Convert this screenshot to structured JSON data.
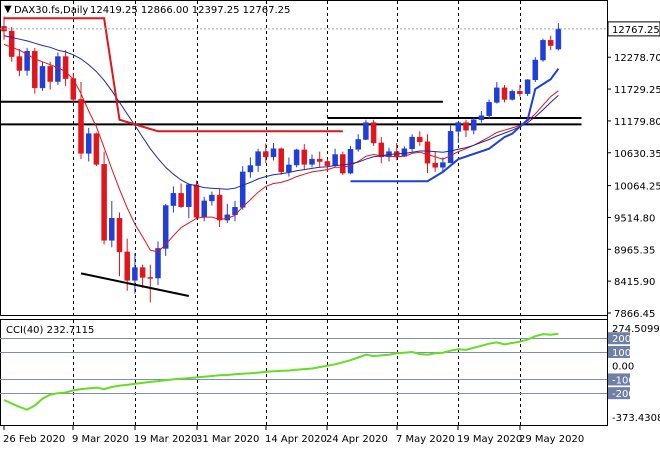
{
  "symbol_header": "DAX30.fs,Daily",
  "ohlc_header": "12419.25 12866.00 12397.25 12767.25",
  "cci_header": "CCI(40) 232.7115",
  "current_price_label": "12767.25",
  "colors": {
    "up": "#1f3fd8",
    "down": "#e0161c",
    "ma_fast": "#e0161c",
    "ma_slow": "#1a2aa8",
    "cci_line": "#66dd22",
    "axis": "#000000",
    "grid": "#000000",
    "price_label_bg": "#ffffff",
    "level_bg": "#6f7fa6"
  },
  "chart_data": [
    {
      "type": "candlestick",
      "title": "DAX30.fs,Daily",
      "y_ticks": [
        "12767.25",
        "12278.70",
        "11729.25",
        "11179.80",
        "10630.35",
        "10064.25",
        "9514.80",
        "8965.35",
        "8415.90",
        "7866.45"
      ],
      "ylim": [
        7866.45,
        13100
      ],
      "x_labels": [
        "26 Feb 2020",
        "9 Mar 2020",
        "19 Mar 2020",
        "31 Mar 2020",
        "14 Apr 2020",
        "24 Apr 2020",
        "7 May 2020",
        "19 May 2020",
        "29 May 2020"
      ],
      "x_label_index": [
        0,
        9,
        17,
        25,
        34,
        42,
        51,
        59,
        67
      ],
      "vertical_grid_index": [
        9,
        17,
        25,
        34,
        42,
        51,
        59,
        67
      ],
      "candles": [
        [
          12810,
          12980,
          12580,
          12730
        ],
        [
          12730,
          12800,
          12200,
          12290
        ],
        [
          12290,
          12420,
          11950,
          12050
        ],
        [
          12050,
          12440,
          11960,
          12380
        ],
        [
          12380,
          12440,
          11650,
          11750
        ],
        [
          11750,
          12200,
          11700,
          12120
        ],
        [
          12120,
          12200,
          11720,
          11860
        ],
        [
          11860,
          12360,
          11800,
          12290
        ],
        [
          12290,
          12400,
          11780,
          11910
        ],
        [
          11910,
          12010,
          11500,
          11550
        ],
        [
          11550,
          11850,
          10520,
          10620
        ],
        [
          10620,
          11060,
          10480,
          10960
        ],
        [
          10960,
          10980,
          10400,
          10430
        ],
        [
          10430,
          10650,
          9050,
          9120
        ],
        [
          9120,
          9800,
          9000,
          9500
        ],
        [
          9500,
          9600,
          8500,
          8920
        ],
        [
          8920,
          9150,
          8250,
          8430
        ],
        [
          8430,
          8900,
          8200,
          8650
        ],
        [
          8650,
          8700,
          8300,
          8480
        ],
        [
          8480,
          8700,
          8050,
          8470
        ],
        [
          8470,
          9100,
          8350,
          8980
        ],
        [
          8980,
          9750,
          8850,
          9720
        ],
        [
          9720,
          10050,
          9600,
          9930
        ],
        [
          9930,
          10100,
          9680,
          9700
        ],
        [
          9700,
          10100,
          9500,
          10080
        ],
        [
          10080,
          10150,
          9480,
          9520
        ],
        [
          9520,
          9870,
          9450,
          9800
        ],
        [
          9800,
          9960,
          9720,
          9900
        ],
        [
          9900,
          10000,
          9350,
          9470
        ],
        [
          9470,
          9750,
          9420,
          9560
        ],
        [
          9560,
          9800,
          9450,
          9690
        ],
        [
          9690,
          10400,
          9650,
          10300
        ],
        [
          10300,
          10550,
          10200,
          10410
        ],
        [
          10410,
          10700,
          10300,
          10650
        ],
        [
          10650,
          10790,
          10450,
          10560
        ],
        [
          10560,
          10800,
          10500,
          10700
        ],
        [
          10700,
          10720,
          10250,
          10300
        ],
        [
          10300,
          10550,
          10220,
          10420
        ],
        [
          10420,
          10700,
          10380,
          10680
        ],
        [
          10680,
          10780,
          10350,
          10430
        ],
        [
          10430,
          10600,
          10380,
          10520
        ],
        [
          10520,
          10650,
          10380,
          10480
        ],
        [
          10480,
          10520,
          10300,
          10410
        ],
        [
          10410,
          10700,
          10380,
          10600
        ],
        [
          10600,
          10650,
          10250,
          10280
        ],
        [
          10280,
          10750,
          10260,
          10690
        ],
        [
          10690,
          10950,
          10650,
          10860
        ],
        [
          10860,
          11200,
          10850,
          11150
        ],
        [
          11150,
          11200,
          10750,
          10800
        ],
        [
          10800,
          10900,
          10450,
          10560
        ],
        [
          10560,
          10720,
          10480,
          10650
        ],
        [
          10650,
          10800,
          10500,
          10570
        ],
        [
          10570,
          10740,
          10560,
          10700
        ],
        [
          10700,
          10950,
          10650,
          10900
        ],
        [
          10900,
          11000,
          10750,
          10820
        ],
        [
          10820,
          10950,
          10280,
          10450
        ],
        [
          10450,
          10650,
          10300,
          10380
        ],
        [
          10380,
          10550,
          10300,
          10460
        ],
        [
          10460,
          11100,
          10450,
          11000
        ],
        [
          11000,
          11180,
          10800,
          11150
        ],
        [
          11150,
          11200,
          10900,
          11020
        ],
        [
          11020,
          11230,
          10950,
          11200
        ],
        [
          11200,
          11350,
          11150,
          11270
        ],
        [
          11270,
          11550,
          11220,
          11500
        ],
        [
          11500,
          11850,
          11480,
          11750
        ],
        [
          11750,
          11800,
          11500,
          11550
        ],
        [
          11550,
          11720,
          11530,
          11690
        ],
        [
          11690,
          11800,
          11600,
          11650
        ],
        [
          11650,
          11900,
          11610,
          11890
        ],
        [
          11890,
          12280,
          11850,
          12230
        ],
        [
          12230,
          12600,
          12200,
          12570
        ],
        [
          12570,
          12650,
          12400,
          12480
        ],
        [
          12419.25,
          12866,
          12397.25,
          12767.25
        ]
      ],
      "ma_fast": [
        12500,
        12450,
        12400,
        12330,
        12250,
        12200,
        12150,
        12100,
        12030,
        11900,
        11650,
        11350,
        11080,
        10720,
        10350,
        10000,
        9680,
        9400,
        9180,
        8950,
        8920,
        9050,
        9200,
        9340,
        9420,
        9500,
        9520,
        9520,
        9480,
        9500,
        9550,
        9700,
        9820,
        9950,
        10050,
        10100,
        10120,
        10160,
        10220,
        10260,
        10300,
        10320,
        10340,
        10380,
        10380,
        10410,
        10480,
        10570,
        10600,
        10580,
        10570,
        10560,
        10570,
        10620,
        10640,
        10600,
        10560,
        10520,
        10580,
        10650,
        10700,
        10760,
        10830,
        10900,
        10980,
        11020,
        11060,
        11100,
        11180,
        11300,
        11450,
        11600,
        11700
      ],
      "ma_slow": [
        12650,
        12620,
        12590,
        12560,
        12520,
        12480,
        12450,
        12400,
        12370,
        12320,
        12250,
        12150,
        12030,
        11880,
        11700,
        11500,
        11300,
        11100,
        10900,
        10700,
        10530,
        10380,
        10260,
        10160,
        10090,
        10060,
        10030,
        10020,
        10010,
        10000,
        10020,
        10070,
        10120,
        10180,
        10220,
        10250,
        10270,
        10290,
        10320,
        10340,
        10360,
        10380,
        10390,
        10410,
        10420,
        10440,
        10470,
        10520,
        10560,
        10580,
        10600,
        10610,
        10620,
        10640,
        10660,
        10660,
        10650,
        10640,
        10660,
        10690,
        10720,
        10760,
        10810,
        10860,
        10920,
        10970,
        11020,
        11080,
        11150,
        11250,
        11370,
        11500,
        11620
      ],
      "h_lines": [
        {
          "value": 11510,
          "from": 0,
          "to": 57
        },
        {
          "value": 11120,
          "from": 0,
          "to": 75
        },
        {
          "value": 11230,
          "from": 42,
          "to": 75
        }
      ],
      "red_path": [
        [
          0,
          12950
        ],
        [
          13,
          12950
        ],
        [
          15,
          11200
        ],
        [
          18,
          11080
        ],
        [
          20,
          11000
        ],
        [
          44,
          11000
        ]
      ],
      "blue_path": [
        [
          45,
          10140
        ],
        [
          55,
          10140
        ],
        [
          57,
          10300
        ],
        [
          59,
          10520
        ],
        [
          63,
          10700
        ],
        [
          65,
          10900
        ],
        [
          66,
          10960
        ],
        [
          68,
          11200
        ],
        [
          69,
          11730
        ],
        [
          71,
          11900
        ],
        [
          72,
          12080
        ]
      ],
      "trendline": [
        [
          10,
          8550
        ],
        [
          24,
          8160
        ]
      ]
    },
    {
      "type": "line",
      "title": "CCI(40) 232.7115",
      "y_ticks": [
        "274.5099",
        "200",
        "100",
        "0.00",
        "-100",
        "-200",
        "-373.4308"
      ],
      "levels": [
        200,
        100,
        -100,
        -200
      ],
      "ylim": [
        -373.4308,
        274.5099
      ],
      "values": [
        -250,
        -275,
        -300,
        -320,
        -290,
        -240,
        -210,
        -200,
        -195,
        -180,
        -170,
        -165,
        -160,
        -170,
        -155,
        -145,
        -140,
        -132,
        -125,
        -118,
        -112,
        -105,
        -100,
        -95,
        -90,
        -85,
        -80,
        -75,
        -70,
        -68,
        -62,
        -58,
        -55,
        -50,
        -45,
        -40,
        -38,
        -35,
        -30,
        -25,
        -20,
        -10,
        0,
        10,
        25,
        40,
        60,
        80,
        70,
        75,
        80,
        90,
        95,
        100,
        85,
        80,
        90,
        95,
        110,
        120,
        115,
        130,
        145,
        160,
        170,
        155,
        165,
        175,
        190,
        215,
        230,
        225,
        232.7
      ]
    }
  ]
}
